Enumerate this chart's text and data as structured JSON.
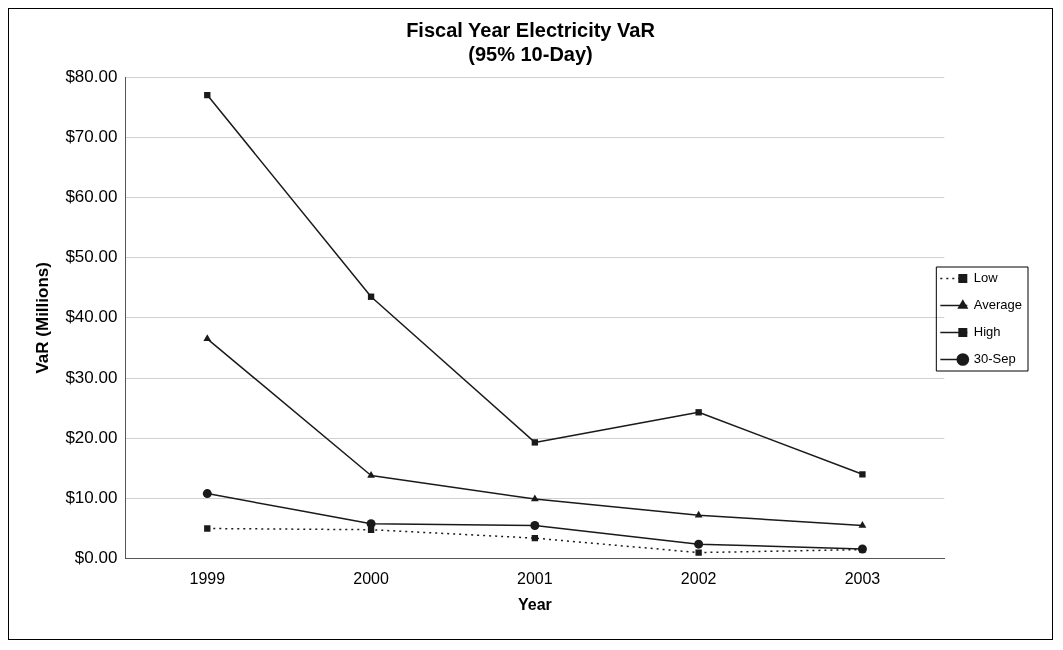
{
  "chart_data": {
    "type": "line",
    "title": [
      "Fiscal Year Electricity VaR",
      "(95% 10-Day)"
    ],
    "xlabel": "Year",
    "ylabel": "VaR (Millions)",
    "categories": [
      "1999",
      "2000",
      "2001",
      "2002",
      "2003"
    ],
    "series": [
      {
        "name": "Low",
        "color": "#1a1a1a",
        "marker": "square",
        "line_style": "dotted",
        "values": [
          5.0,
          4.8,
          3.4,
          1.0,
          1.5
        ]
      },
      {
        "name": "Average",
        "color": "#1a1a1a",
        "marker": "triangle",
        "line_style": "solid",
        "values": [
          36.5,
          13.8,
          9.9,
          7.2,
          5.5
        ]
      },
      {
        "name": "High",
        "color": "#1a1a1a",
        "marker": "square",
        "line_style": "solid",
        "values": [
          77,
          43.5,
          19.3,
          24.3,
          14
        ]
      },
      {
        "name": "30-Sep",
        "color": "#1a1a1a",
        "marker": "circle",
        "line_style": "solid",
        "values": [
          10.8,
          5.8,
          5.5,
          2.4,
          1.6
        ]
      }
    ],
    "ylim": [
      0,
      80
    ],
    "yticks": [
      {
        "value": 0,
        "label": "$0.00"
      },
      {
        "value": 10,
        "label": "$10.00"
      },
      {
        "value": 20,
        "label": "$20.00"
      },
      {
        "value": 30,
        "label": "$30.00"
      },
      {
        "value": 40,
        "label": "$40.00"
      },
      {
        "value": 50,
        "label": "$50.00"
      },
      {
        "value": 60,
        "label": "$60.00"
      },
      {
        "value": 70,
        "label": "$70.00"
      },
      {
        "value": 80,
        "label": "$80.00"
      }
    ],
    "grid": "y",
    "legend": "right"
  }
}
